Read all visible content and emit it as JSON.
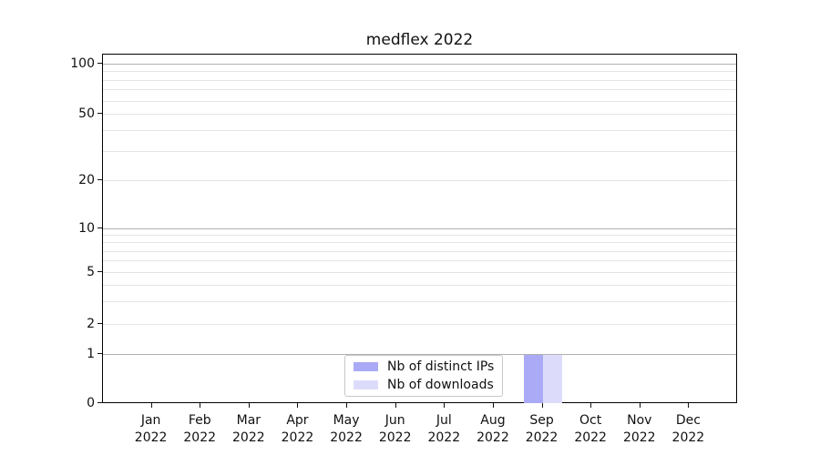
{
  "chart_data": {
    "type": "bar",
    "title": "medflex 2022",
    "xlabel": "",
    "ylabel": "",
    "y_scale": "symlog",
    "ylim": [
      0,
      113
    ],
    "yticks": [
      0,
      1,
      2,
      5,
      10,
      20,
      50,
      100
    ],
    "grid": {
      "horizontal": true,
      "vertical": false,
      "minor_gridlines": true
    },
    "categories": [
      "Jan",
      "Feb",
      "Mar",
      "Apr",
      "May",
      "Jun",
      "Jul",
      "Aug",
      "Sep",
      "Oct",
      "Nov",
      "Dec"
    ],
    "category_year": "2022",
    "legend_position": "inside-bottom-center",
    "series": [
      {
        "name": "Nb of distinct IPs",
        "color": "#aaaaf7",
        "values": [
          0,
          0,
          0,
          0,
          0,
          0,
          0,
          0,
          1,
          0,
          0,
          0
        ]
      },
      {
        "name": "Nb of downloads",
        "color": "#dcdcfa",
        "values": [
          0,
          0,
          0,
          0,
          0,
          0,
          0,
          0,
          1,
          0,
          0,
          0
        ]
      }
    ]
  }
}
